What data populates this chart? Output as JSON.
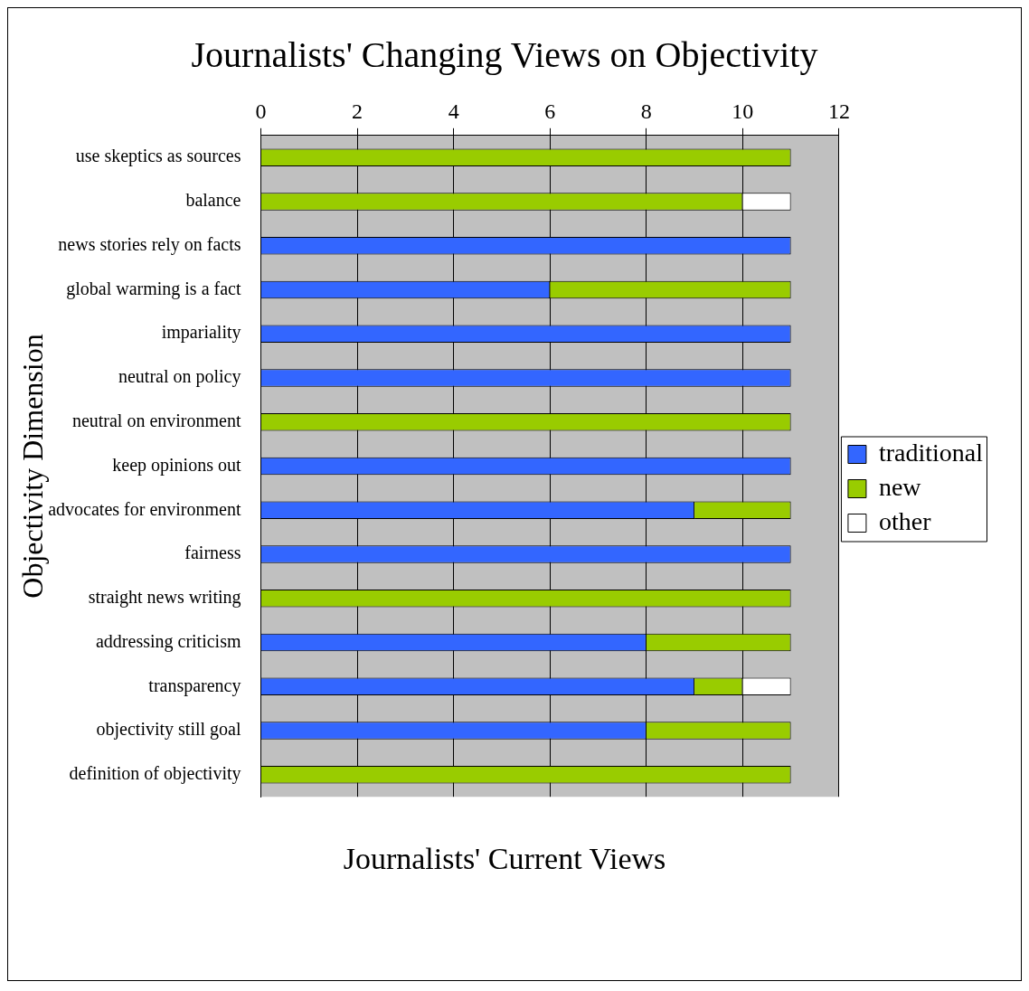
{
  "chart_data": {
    "type": "bar",
    "orientation": "horizontal",
    "stacked": true,
    "title": "Journalists' Changing Views on Objectivity",
    "xlabel": "Journalists' Current Views",
    "ylabel": "Objectivity Dimension",
    "categories": [
      "use skeptics as sources",
      "balance",
      "news stories rely on facts",
      "global warming is a fact",
      "impariality",
      "neutral on policy",
      "neutral on environment",
      "keep opinions out",
      "advocates for environment",
      "fairness",
      "straight news writing",
      "addressing criticism",
      "transparency",
      "objectivity still goal",
      "definition of objectivity"
    ],
    "series": [
      {
        "name": "traditional",
        "color": "#3366ff",
        "values": [
          null,
          null,
          11,
          6,
          11,
          11,
          null,
          11,
          9,
          11,
          null,
          8,
          9,
          8,
          null
        ]
      },
      {
        "name": "new",
        "color": "#99cc00",
        "values": [
          11,
          10,
          null,
          5,
          null,
          null,
          11,
          null,
          2,
          null,
          11,
          3,
          1,
          3,
          11
        ]
      },
      {
        "name": "other",
        "color": "#ffffff",
        "values": [
          null,
          1,
          null,
          null,
          null,
          null,
          null,
          null,
          null,
          null,
          null,
          null,
          1,
          null,
          null
        ]
      }
    ],
    "xlim": [
      0,
      12
    ],
    "xticks": [
      0,
      2,
      4,
      6,
      8,
      10,
      12
    ],
    "grid": "x",
    "legend": "right"
  }
}
